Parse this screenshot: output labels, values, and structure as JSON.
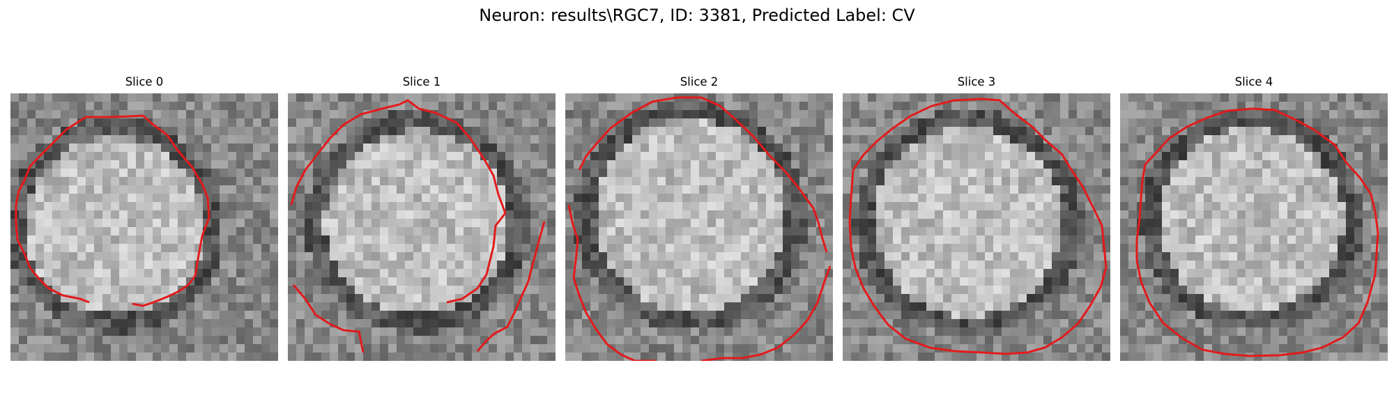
{
  "title": "Neuron: results\\RGC7, ID: 3381, Predicted Label: CV",
  "slices": [
    {
      "label": "Slice 0"
    },
    {
      "label": "Slice 1"
    },
    {
      "label": "Slice 2"
    },
    {
      "label": "Slice 3"
    },
    {
      "label": "Slice 4"
    }
  ],
  "colors": {
    "contour": "#e31a1c",
    "background": "#ffffff"
  }
}
